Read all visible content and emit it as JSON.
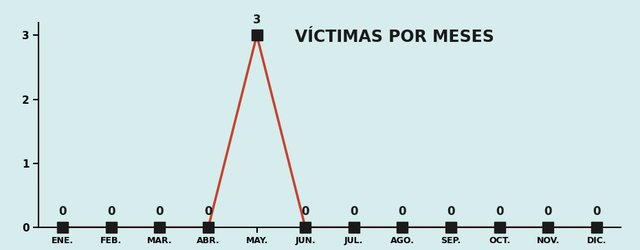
{
  "chart_data": {
    "type": "line",
    "title": "VÍCTIMAS POR MESES",
    "categories": [
      "ENE.",
      "FEB.",
      "MAR.",
      "ABR.",
      "MAY.",
      "JUN.",
      "JUL.",
      "AGO.",
      "SEP.",
      "OCT.",
      "NOV.",
      "DIC."
    ],
    "values": [
      0,
      0,
      0,
      0,
      3,
      0,
      0,
      0,
      0,
      0,
      0,
      0
    ],
    "color": "#c8412b",
    "marker": "square",
    "line_style": "solid",
    "ylim": [
      0,
      3.2
    ],
    "yticks": [
      0,
      1,
      2,
      3
    ],
    "data_labels": true,
    "grid": false
  }
}
